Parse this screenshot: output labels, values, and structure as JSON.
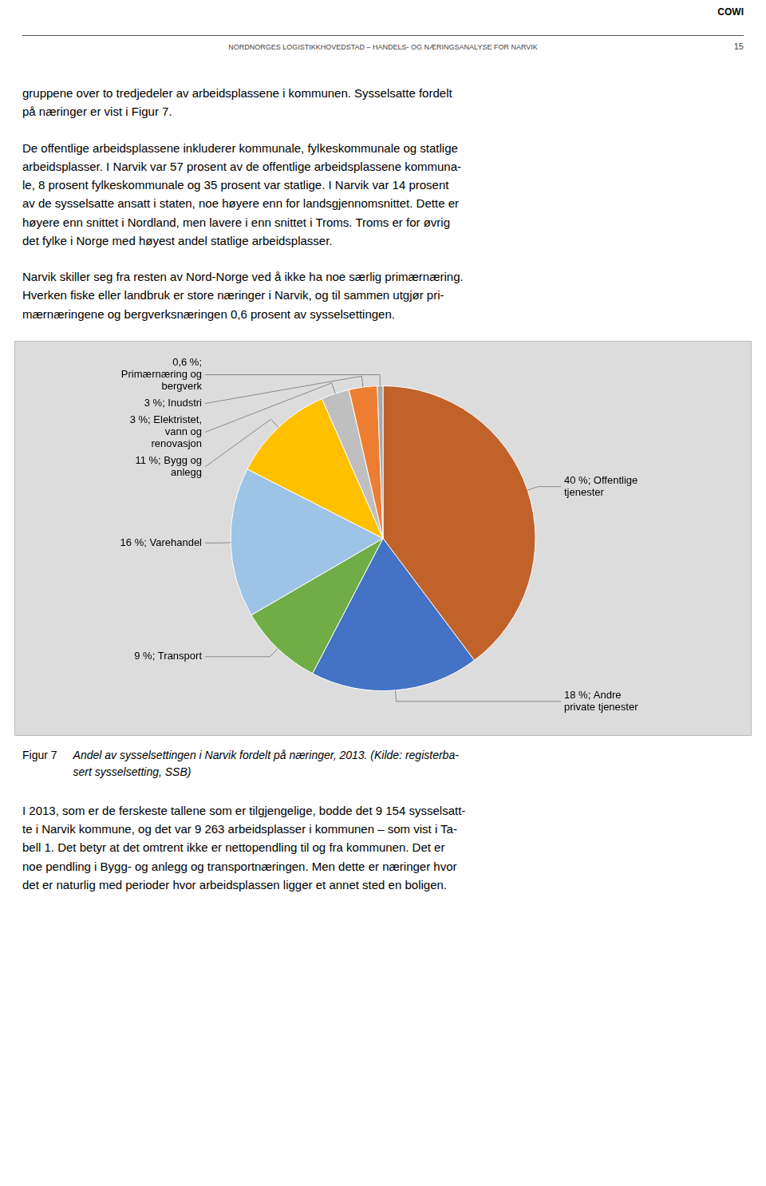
{
  "chart_data": {
    "type": "pie",
    "title": "Figur 7",
    "subtitle": "Andel av sysselsettingen i Narvik fordelt på næringer, 2013. (Kilde: registerba-\nsert sysselsetting, SSB)",
    "categories": [
      "40 %; Offentlige\ntjenester",
      "18 %; Andre\nprivate tjenester",
      "9 %; Transport",
      "16 %; Varehandel",
      "11 %; Bygg og\nanlegg",
      "3 %; Elektristet,\nvann og\nrenovasjon",
      "3 %; Inudstri",
      "0,6 %;\nPrimærnæring og\nbergverk"
    ],
    "values": [
      40,
      18,
      9,
      16,
      11,
      3,
      3,
      0.6
    ],
    "colors": [
      "#c0622a",
      "#4472c4",
      "#70ad47",
      "#9dc3e6",
      "#ffc000",
      "#bfbfbf",
      "#ed7d31",
      "#a9a9a9"
    ],
    "annotations": [
      "COWI",
      "NORDNORGES LOGISTIKKHOVEDSTAD – HANDELS- OG NÆRINGSANALYSE FOR NARVIK",
      "15",
      "gruppene over to tredjedeler av arbeidsplassene i kommunen. Sysselsatte fordelt\npå næringer er vist i Figur 7.",
      "De offentlige arbeidsplassene inkluderer kommunale, fylkeskommunale og statlige\narbeidsplasser. I Narvik var 57 prosent av de offentlige arbeidsplassene kommuna-\nle, 8 prosent fylkeskommunale og 35 prosent var statlige. I Narvik var 14 prosent\nav de sysselsatte ansatt i staten, noe høyere enn for landsgjennomsnittet. Dette er\nhøyere enn snittet i Nordland, men lavere i enn snittet i Troms. Troms er for øvrig\ndet fylke i Norge med høyest andel statlige arbeidsplasser.",
      "Narvik skiller seg fra resten av Nord-Norge ved å ikke ha noe særlig primærnæring.\nHverken fiske eller landbruk er store næringer i Narvik, og til sammen utgjør pri-\nmærnæringene og bergverksnæringen 0,6 prosent av sysselsettingen.",
      "I 2013, som er de ferskeste tallene som er tilgjengelige, bodde det 9 154 sysselsatt-\nte i Narvik kommune, og det var 9 263 arbeidsplasser i kommunen – som vist i Ta-\nbell 1. Det betyr at det omtrent ikke er nettopendling til og fra kommunen. Det er\nnoe pendling i Bygg- og anlegg og transportnæringen. Men dette er næringer hvor\ndet er naturlig med perioder hvor arbeidsplassen ligger et annet sted en boligen."
    ]
  }
}
